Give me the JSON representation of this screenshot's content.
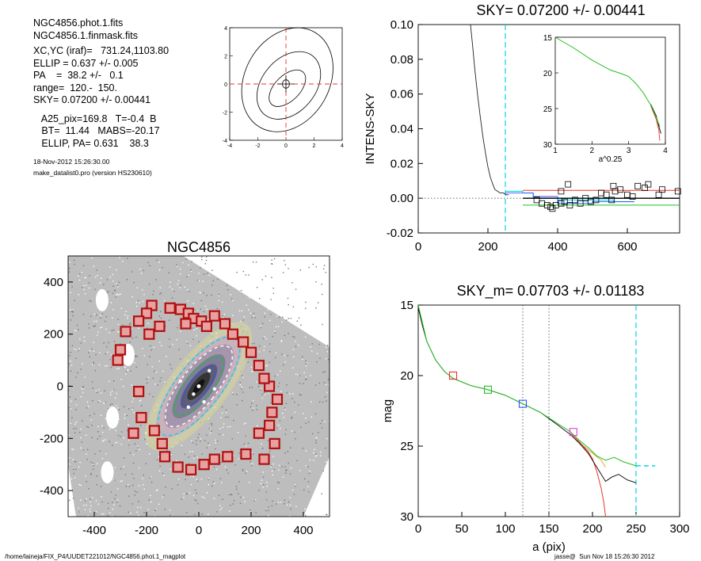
{
  "info": {
    "lines": [
      "NGC4856.phot.1.fits",
      "NGC4856.1.finmask.fits",
      "",
      "XC,YC (iraf)=   731.24,1103.80",
      "ELLIP = 0.637 +/- 0.005",
      "PA    =  38.2 +/-   0.1",
      "range=  120.-  150.",
      "SKY= 0.07200 +/- 0.00441",
      "",
      "   A25_pix=169.8   T=-0.4  B",
      "   BT=  11.44   MABS=-20.17",
      "   ELLIP, PA= 0.631    38.3"
    ],
    "date": "18-Nov-2012 15:26:30.00",
    "program": "make_datalist0.pro (version HS230610)"
  },
  "footer": {
    "path": "/home/laineja/FIX_P4/UUDET221012/NGC4856.phot.1_magplot",
    "user": "jasse@  Sun Nov 18 15:26:30 2012"
  },
  "colors": {
    "cyan": "#00d7e6",
    "red": "#e8352c",
    "green": "#22c020",
    "blue": "#3050ff",
    "magenta": "#e040d0",
    "box": "#b01010"
  },
  "chart_data": [
    {
      "id": "contour",
      "type": "contour",
      "title": "",
      "xlim": [
        -4,
        4
      ],
      "ylim": [
        -4,
        4
      ],
      "xticks": [
        -4,
        -2,
        0,
        2,
        4
      ],
      "yticks": [
        -4,
        -2,
        0,
        2,
        4
      ],
      "contours": [
        {
          "cx": 0.1,
          "cy": 0.3,
          "a": 3.9,
          "b": 3.0,
          "angle": 30
        },
        {
          "cx": 0.2,
          "cy": -0.1,
          "a": 2.7,
          "b": 1.9,
          "angle": 40
        },
        {
          "cx": 0.1,
          "cy": -0.3,
          "a": 1.6,
          "b": 0.9,
          "angle": 45
        },
        {
          "cx": 0.0,
          "cy": 0.0,
          "a": 0.3,
          "b": 0.25,
          "angle": 0
        }
      ]
    },
    {
      "id": "sky",
      "type": "line",
      "title": "SKY= 0.07200 +/- 0.00441",
      "xlabel": "",
      "ylabel": "INTENS-SKY",
      "xlim": [
        0,
        750
      ],
      "ylim": [
        -0.02,
        0.1
      ],
      "xticks": [
        0,
        200,
        400,
        600
      ],
      "yticks": [
        -0.02,
        0.0,
        0.02,
        0.04,
        0.06,
        0.08,
        0.1
      ],
      "ytick_labels": [
        "-0.02",
        "0.00",
        "0.02",
        "0.04",
        "0.06",
        "0.08",
        "0.10"
      ],
      "profile": [
        [
          150,
          0.1
        ],
        [
          155,
          0.09
        ],
        [
          162,
          0.075
        ],
        [
          170,
          0.06
        ],
        [
          178,
          0.047
        ],
        [
          186,
          0.035
        ],
        [
          193,
          0.026
        ],
        [
          200,
          0.018
        ],
        [
          207,
          0.012
        ],
        [
          214,
          0.008
        ],
        [
          220,
          0.005
        ],
        [
          228,
          0.004
        ],
        [
          235,
          0.003
        ],
        [
          245,
          0.003
        ],
        [
          252,
          0.002
        ],
        [
          260,
          0.002
        ]
      ],
      "steps_cyan": [
        [
          250,
          0.004
        ],
        [
          300,
          0.003
        ],
        [
          330,
          0.0
        ],
        [
          400,
          -0.001
        ],
        [
          500,
          -0.001
        ],
        [
          560,
          -0.002
        ],
        [
          600,
          -0.002
        ]
      ],
      "steps_blue": [
        [
          250,
          0.003
        ],
        [
          330,
          0.001
        ],
        [
          400,
          -0.003
        ],
        [
          500,
          -0.002
        ],
        [
          600,
          -0.002
        ]
      ],
      "sky_squares": [
        [
          340,
          -0.001
        ],
        [
          355,
          -0.003
        ],
        [
          370,
          -0.004
        ],
        [
          380,
          -0.005
        ],
        [
          385,
          -0.006
        ],
        [
          395,
          -0.004
        ],
        [
          410,
          -0.003
        ],
        [
          420,
          -0.002
        ],
        [
          435,
          -0.004
        ],
        [
          450,
          -0.001
        ],
        [
          465,
          -0.003
        ],
        [
          480,
          0.0
        ],
        [
          495,
          -0.002
        ],
        [
          510,
          -0.001
        ],
        [
          525,
          0.003
        ],
        [
          540,
          0.002
        ],
        [
          555,
          -0.001
        ],
        [
          565,
          0.004
        ],
        [
          580,
          0.005
        ],
        [
          600,
          0.002
        ],
        [
          615,
          0.001
        ],
        [
          630,
          0.007
        ],
        [
          650,
          0.006
        ],
        [
          660,
          0.008
        ],
        [
          690,
          0.002
        ],
        [
          745,
          0.004
        ],
        [
          410,
          0.004
        ],
        [
          430,
          0.008
        ],
        [
          560,
          0.007
        ],
        [
          700,
          0.005
        ]
      ],
      "red_level": 0.0045,
      "black_level": 0.0,
      "green_level": -0.004,
      "vline": 250,
      "inset": {
        "xlabel": "a^0.25",
        "xlim": [
          1,
          4
        ],
        "ylim": [
          15,
          30
        ],
        "xticks": [
          1,
          2,
          3,
          4
        ],
        "yticks": [
          15,
          20,
          25,
          30
        ],
        "green": [
          [
            1.0,
            15.0
          ],
          [
            1.5,
            16.5
          ],
          [
            2.0,
            18.2
          ],
          [
            2.5,
            19.6
          ],
          [
            2.8,
            20.1
          ],
          [
            3.0,
            20.5
          ],
          [
            3.2,
            21.5
          ],
          [
            3.4,
            22.8
          ],
          [
            3.6,
            24.5
          ],
          [
            3.75,
            26.2
          ],
          [
            3.85,
            27.5
          ]
        ],
        "red": [
          [
            3.6,
            24.6
          ],
          [
            3.75,
            26.5
          ],
          [
            3.82,
            28.0
          ],
          [
            3.85,
            29.5
          ]
        ],
        "black": [
          [
            3.6,
            24.4
          ],
          [
            3.75,
            26.0
          ],
          [
            3.83,
            27.6
          ],
          [
            3.88,
            28.5
          ]
        ]
      }
    },
    {
      "id": "image",
      "type": "scatter",
      "title": "NGC4856",
      "xlim": [
        -500,
        500
      ],
      "ylim": [
        -500,
        500
      ],
      "xticks": [
        -400,
        -200,
        0,
        200,
        400
      ],
      "yticks": [
        -400,
        -200,
        0,
        200,
        400
      ],
      "mask_boxes": [
        [
          -180,
          310
        ],
        [
          -110,
          300
        ],
        [
          -70,
          295
        ],
        [
          -40,
          280
        ],
        [
          -20,
          260
        ],
        [
          10,
          250
        ],
        [
          30,
          230
        ],
        [
          -200,
          280
        ],
        [
          -230,
          250
        ],
        [
          -280,
          210
        ],
        [
          -300,
          140
        ],
        [
          -310,
          100
        ],
        [
          -230,
          -20
        ],
        [
          -220,
          -120
        ],
        [
          -250,
          -180
        ],
        [
          -170,
          -170
        ],
        [
          -140,
          -220
        ],
        [
          -130,
          -270
        ],
        [
          -80,
          -310
        ],
        [
          -30,
          -320
        ],
        [
          20,
          -300
        ],
        [
          60,
          -280
        ],
        [
          110,
          -270
        ],
        [
          180,
          -260
        ],
        [
          250,
          -280
        ],
        [
          290,
          -220
        ],
        [
          230,
          -180
        ],
        [
          270,
          -150
        ],
        [
          280,
          -100
        ],
        [
          300,
          -50
        ],
        [
          270,
          0
        ],
        [
          250,
          30
        ],
        [
          230,
          80
        ],
        [
          200,
          130
        ],
        [
          170,
          170
        ],
        [
          130,
          200
        ],
        [
          100,
          240
        ],
        [
          60,
          270
        ],
        [
          -50,
          240
        ],
        [
          -190,
          200
        ],
        [
          -150,
          230
        ]
      ],
      "ellipse_a": 230,
      "ellipse_b": 85,
      "pa_deg": 38
    },
    {
      "id": "mag",
      "type": "line",
      "title": "SKY_m=  0.07703 +/- 0.01183",
      "xlabel": "a (pix)",
      "ylabel": "mag",
      "xlim": [
        0,
        300
      ],
      "ylim": [
        15,
        30
      ],
      "xticks": [
        0,
        50,
        100,
        150,
        200,
        250,
        300
      ],
      "yticks": [
        15,
        20,
        25,
        30
      ],
      "profile": [
        [
          0,
          15.2
        ],
        [
          5,
          16.5
        ],
        [
          10,
          17.6
        ],
        [
          20,
          18.9
        ],
        [
          30,
          19.7
        ],
        [
          40,
          20.2
        ],
        [
          60,
          20.7
        ],
        [
          80,
          21.0
        ],
        [
          100,
          21.4
        ],
        [
          120,
          22.0
        ],
        [
          140,
          22.6
        ],
        [
          160,
          23.5
        ],
        [
          175,
          24.2
        ],
        [
          185,
          24.8
        ],
        [
          195,
          25.5
        ],
        [
          200,
          26.0
        ],
        [
          210,
          27.0
        ],
        [
          215,
          27.5
        ],
        [
          222,
          27.2
        ],
        [
          230,
          27.0
        ],
        [
          240,
          27.4
        ],
        [
          250,
          27.6
        ]
      ],
      "green": [
        [
          0,
          15.0
        ],
        [
          5,
          16.3
        ],
        [
          10,
          17.6
        ],
        [
          20,
          18.9
        ],
        [
          30,
          19.7
        ],
        [
          40,
          20.2
        ],
        [
          60,
          20.7
        ],
        [
          80,
          21.0
        ],
        [
          100,
          21.4
        ],
        [
          120,
          22.0
        ],
        [
          140,
          22.6
        ],
        [
          160,
          23.4
        ],
        [
          175,
          24.0
        ],
        [
          185,
          24.6
        ],
        [
          195,
          25.1
        ],
        [
          205,
          25.7
        ],
        [
          215,
          26.0
        ],
        [
          225,
          25.8
        ],
        [
          235,
          26.1
        ],
        [
          245,
          26.3
        ],
        [
          250,
          26.4
        ]
      ],
      "red": [
        [
          175,
          24.1
        ],
        [
          185,
          24.7
        ],
        [
          195,
          25.4
        ],
        [
          200,
          25.9
        ],
        [
          205,
          26.8
        ],
        [
          210,
          28.0
        ],
        [
          213,
          29.0
        ],
        [
          215,
          30.0
        ]
      ],
      "orange": [
        [
          180,
          24.5
        ],
        [
          190,
          25.0
        ],
        [
          200,
          25.5
        ],
        [
          210,
          26.0
        ],
        [
          215,
          26.5
        ]
      ],
      "markers": [
        {
          "x": 40,
          "y": 20.0,
          "color": "red"
        },
        {
          "x": 80,
          "y": 21.0,
          "color": "green"
        },
        {
          "x": 120,
          "y": 22.0,
          "color": "blue"
        },
        {
          "x": 178,
          "y": 24.0,
          "color": "magenta"
        }
      ],
      "dotted_lines": [
        120,
        150
      ],
      "cyan_line": 250,
      "sky_mag": 26.4
    }
  ]
}
